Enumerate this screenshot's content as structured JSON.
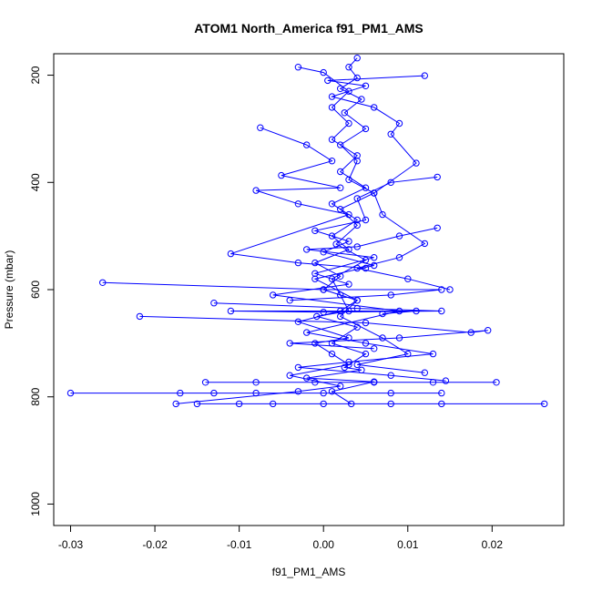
{
  "chart_data": {
    "type": "line",
    "title": "ATOM1 North_America f91_PM1_AMS",
    "xlabel": "f91_PM1_AMS",
    "ylabel": "Pressure (mbar)",
    "xlim": [
      -0.032,
      0.0285
    ],
    "ylim": [
      1040,
      160
    ],
    "y_inverted": true,
    "grid": false,
    "marker": "open-circle",
    "color": "#0000ff",
    "x_ticks": [
      -0.03,
      -0.02,
      -0.01,
      0.0,
      0.01,
      0.02
    ],
    "x_tick_labels": [
      "-0.03",
      "-0.02",
      "-0.01",
      "0.00",
      "0.01",
      "0.02"
    ],
    "y_ticks": [
      200,
      400,
      600,
      800,
      1000
    ],
    "y_tick_labels": [
      "200",
      "400",
      "600",
      "800",
      "1000"
    ],
    "series": [
      {
        "points": [
          [
            0.0033,
            813
          ],
          [
            0.001,
            790
          ],
          [
            0.006,
            772
          ],
          [
            -0.002,
            765
          ],
          [
            0.0045,
            750
          ],
          [
            0.0025,
            745
          ],
          [
            0.005,
            720
          ],
          [
            0.001,
            700
          ],
          [
            0.004,
            670
          ],
          [
            -0.0008,
            650
          ],
          [
            0.003,
            640
          ],
          [
            0.002,
            610
          ],
          [
            0.001,
            580
          ],
          [
            0.005,
            545
          ],
          [
            0.0015,
            515
          ],
          [
            0.004,
            480
          ],
          [
            0.002,
            450
          ],
          [
            0.006,
            420
          ],
          [
            0.003,
            395
          ],
          [
            0.004,
            360
          ],
          [
            0.002,
            330
          ],
          [
            0.005,
            300
          ],
          [
            0.0025,
            270
          ],
          [
            0.0045,
            245
          ],
          [
            0.002,
            225
          ],
          [
            0.004,
            205
          ],
          [
            0.003,
            185
          ],
          [
            0.004,
            168
          ]
        ]
      },
      {
        "points": [
          [
            -0.0175,
            813
          ],
          [
            -0.003,
            790
          ],
          [
            0.002,
            780
          ],
          [
            -0.004,
            760
          ],
          [
            0.003,
            740
          ],
          [
            0.001,
            720
          ],
          [
            -0.001,
            700
          ],
          [
            0.003,
            690
          ],
          [
            -0.003,
            660
          ],
          [
            0.002,
            640
          ],
          [
            0.004,
            620
          ],
          [
            0.0,
            600
          ],
          [
            0.002,
            575
          ],
          [
            -0.001,
            550
          ],
          [
            0.003,
            525
          ],
          [
            0.001,
            500
          ],
          [
            0.004,
            470
          ],
          [
            0.001,
            440
          ],
          [
            0.005,
            410
          ],
          [
            0.002,
            380
          ],
          [
            0.004,
            350
          ],
          [
            0.001,
            320
          ],
          [
            0.003,
            290
          ],
          [
            0.001,
            260
          ],
          [
            0.003,
            230
          ],
          [
            0.0,
            195
          ],
          [
            -0.003,
            185
          ]
        ]
      },
      {
        "points": [
          [
            0.0262,
            813
          ],
          [
            0.014,
            813
          ],
          [
            0.008,
            813
          ],
          [
            0.0,
            813
          ],
          [
            -0.006,
            813
          ],
          [
            -0.01,
            813
          ],
          [
            -0.015,
            813
          ]
        ]
      },
      {
        "points": [
          [
            -0.03,
            793
          ],
          [
            0.014,
            793
          ],
          [
            0.008,
            793
          ],
          [
            0.0,
            793
          ],
          [
            -0.008,
            793
          ],
          [
            -0.013,
            793
          ],
          [
            -0.017,
            793
          ]
        ]
      },
      {
        "points": [
          [
            0.0205,
            773
          ],
          [
            0.013,
            773
          ],
          [
            0.006,
            773
          ],
          [
            -0.001,
            773
          ],
          [
            -0.008,
            773
          ],
          [
            -0.014,
            773
          ]
        ]
      },
      {
        "points": [
          [
            -0.0262,
            587
          ],
          [
            0.0,
            600
          ],
          [
            0.014,
            600
          ],
          [
            0.008,
            610
          ],
          [
            -0.004,
            620
          ]
        ]
      },
      {
        "points": [
          [
            -0.0218,
            650
          ],
          [
            0.005,
            662
          ],
          [
            0.0175,
            680
          ],
          [
            0.0195,
            676
          ],
          [
            0.009,
            690
          ],
          [
            -0.004,
            700
          ],
          [
            0.006,
            710
          ]
        ]
      },
      {
        "points": [
          [
            -0.013,
            625
          ],
          [
            0.004,
            635
          ],
          [
            0.014,
            640
          ],
          [
            0.0,
            642
          ],
          [
            -0.011,
            640
          ],
          [
            0.011,
            640
          ],
          [
            0.007,
            645
          ]
        ]
      },
      {
        "points": [
          [
            0.012,
            201
          ],
          [
            0.0005,
            210
          ],
          [
            0.005,
            220
          ],
          [
            0.001,
            240
          ],
          [
            0.006,
            260
          ],
          [
            0.009,
            290
          ],
          [
            0.008,
            310
          ],
          [
            0.011,
            364
          ],
          [
            0.006,
            420
          ],
          [
            0.007,
            460
          ],
          [
            0.012,
            514
          ],
          [
            0.009,
            540
          ],
          [
            0.004,
            560
          ],
          [
            0.01,
            580
          ],
          [
            0.015,
            600
          ]
        ]
      },
      {
        "points": [
          [
            -0.0075,
            298
          ],
          [
            -0.002,
            330
          ],
          [
            0.001,
            360
          ],
          [
            -0.005,
            387
          ],
          [
            0.002,
            410
          ],
          [
            -0.008,
            415
          ],
          [
            -0.003,
            440
          ],
          [
            0.003,
            460
          ],
          [
            -0.011,
            533
          ],
          [
            -0.003,
            550
          ],
          [
            0.005,
            560
          ]
        ]
      },
      {
        "points": [
          [
            0.0135,
            485
          ],
          [
            0.009,
            500
          ],
          [
            0.004,
            520
          ],
          [
            -0.002,
            525
          ],
          [
            0.006,
            540
          ],
          [
            -0.001,
            570
          ],
          [
            0.003,
            590
          ],
          [
            -0.006,
            610
          ],
          [
            0.009,
            640
          ],
          [
            -0.002,
            680
          ],
          [
            0.005,
            700
          ],
          [
            0.013,
            720
          ],
          [
            0.003,
            735
          ],
          [
            -0.003,
            745
          ],
          [
            0.008,
            760
          ],
          [
            0.0145,
            770
          ]
        ]
      },
      {
        "points": [
          [
            0.0135,
            390
          ],
          [
            0.008,
            400
          ],
          [
            0.004,
            430
          ],
          [
            0.005,
            470
          ],
          [
            -0.001,
            490
          ],
          [
            0.003,
            510
          ],
          [
            0.0,
            530
          ],
          [
            0.006,
            555
          ],
          [
            -0.001,
            580
          ],
          [
            0.004,
            620
          ],
          [
            0.002,
            650
          ],
          [
            0.007,
            690
          ],
          [
            0.01,
            720
          ],
          [
            0.004,
            740
          ],
          [
            0.012,
            755
          ]
        ]
      }
    ]
  }
}
